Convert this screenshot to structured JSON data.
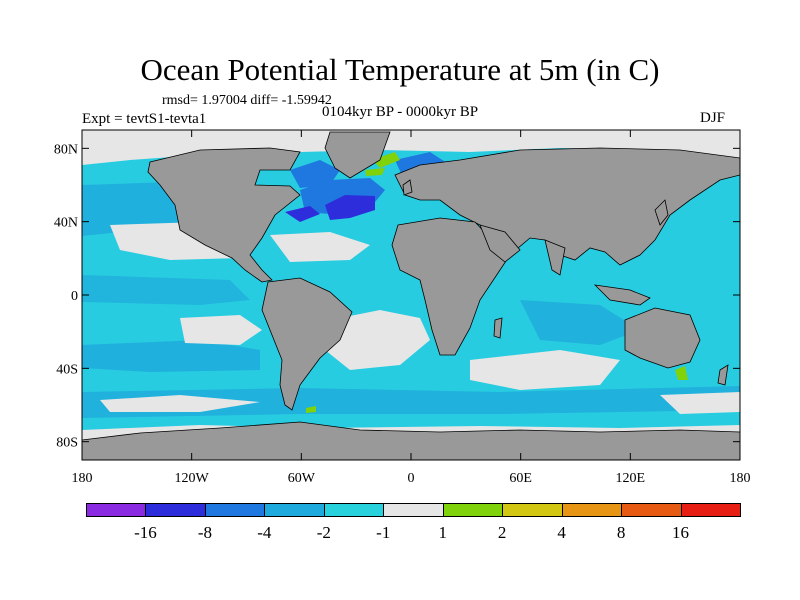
{
  "figure": {
    "title": "Ocean Potential Temperature at 5m (in C)",
    "stats_text": "rmsd= 1.97004 diff= -1.59942",
    "left_label": "Expt = tevtS1-tevta1",
    "center_label": "0104kyr BP - 0000kyr BP",
    "right_label": "DJF"
  },
  "map": {
    "projection": "cylindrical equidistant",
    "lon_range": [
      -180,
      180
    ],
    "lat_range": [
      -90,
      90
    ],
    "lat_ticks": [
      {
        "value": 80,
        "label": "80N"
      },
      {
        "value": 40,
        "label": "40N"
      },
      {
        "value": 0,
        "label": "0"
      },
      {
        "value": -40,
        "label": "40S"
      },
      {
        "value": -80,
        "label": "80S"
      }
    ],
    "lon_ticks": [
      {
        "value": -180,
        "label": "180"
      },
      {
        "value": -120,
        "label": "120W"
      },
      {
        "value": -60,
        "label": "60W"
      },
      {
        "value": 0,
        "label": "0"
      },
      {
        "value": 60,
        "label": "60E"
      },
      {
        "value": 120,
        "label": "120E"
      },
      {
        "value": 180,
        "label": "180"
      }
    ],
    "colors": {
      "land": "#999999",
      "ocean_bg": "#28cce0",
      "missing": "#e6e6e6"
    }
  },
  "colorbar": {
    "labels": [
      "-16",
      "-8",
      "-4",
      "-2",
      "-1",
      "1",
      "2",
      "4",
      "8",
      "16"
    ],
    "colors": [
      "#8a2be2",
      "#2d2ddc",
      "#1e78e0",
      "#1eaadc",
      "#28d2dc",
      "#e6e6e6",
      "#80d20a",
      "#d2c814",
      "#e69614",
      "#e65a14",
      "#e61e14"
    ]
  }
}
